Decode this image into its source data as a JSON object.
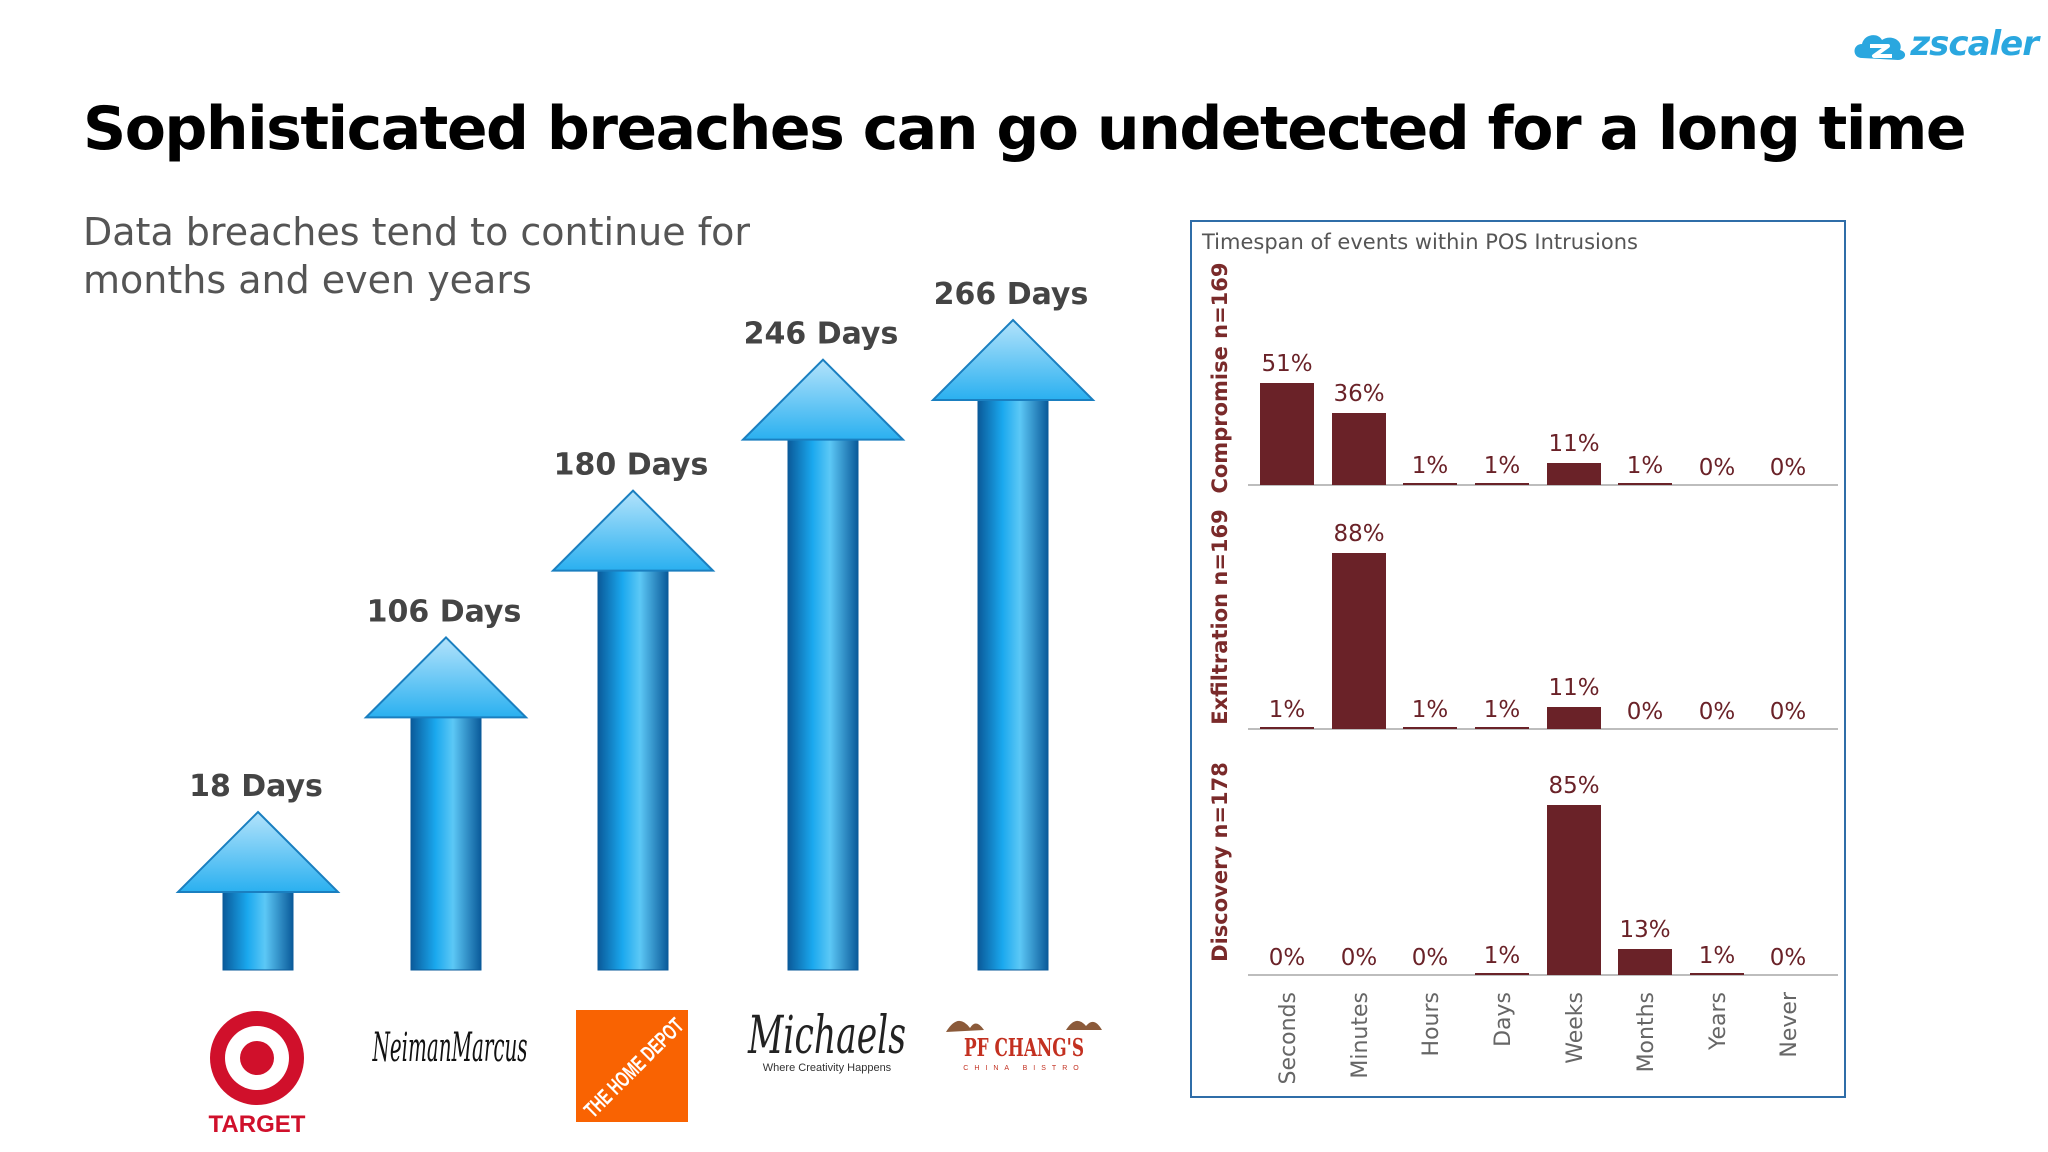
{
  "brand": "zscaler",
  "title": "Sophisticated breaches can go undetected for a long time",
  "subtitle": "Data breaches tend to continue for months and even years",
  "companies": [
    {
      "name": "Target",
      "logo_text": "TARGET",
      "days_label": "18 Days",
      "days": 18
    },
    {
      "name": "Neiman Marcus",
      "logo_text": "NeimanMarcus",
      "days_label": "106 Days",
      "days": 106
    },
    {
      "name": "The Home Depot",
      "logo_text": "THE HOME DEPOT",
      "days_label": "180 Days",
      "days": 180
    },
    {
      "name": "Michaels",
      "logo_text": "Michaels",
      "logo_tagline": "Where Creativity Happens",
      "days_label": "246 Days",
      "days": 246
    },
    {
      "name": "PF Chang's",
      "logo_text": "PF CHANG'S",
      "logo_tagline": "CHINA BISTRO",
      "days_label": "266 Days",
      "days": 266
    }
  ],
  "colors": {
    "arrow": "#1f9fe0",
    "bar": "#6a2228",
    "frame": "#2f6da8",
    "target_red": "#d0102b",
    "home_depot_orange": "#f96302"
  },
  "chart_data": {
    "type": "bar",
    "title": "Timespan of events within POS Intrusions",
    "categories": [
      "Seconds",
      "Minutes",
      "Hours",
      "Days",
      "Weeks",
      "Months",
      "Years",
      "Never"
    ],
    "series": [
      {
        "name": "Compromise n=169",
        "values": [
          51,
          36,
          1,
          1,
          11,
          1,
          0,
          0
        ],
        "labels": [
          "51%",
          "36%",
          "1%",
          "1%",
          "11%",
          "1%",
          "0%",
          "0%"
        ]
      },
      {
        "name": "Exfiltration n=169",
        "values": [
          1,
          88,
          1,
          1,
          11,
          0,
          0,
          0
        ],
        "labels": [
          "1%",
          "88%",
          "1%",
          "1%",
          "11%",
          "0%",
          "0%",
          "0%"
        ]
      },
      {
        "name": "Discovery n=178",
        "values": [
          0,
          0,
          0,
          1,
          85,
          13,
          1,
          0
        ],
        "labels": [
          "0%",
          "0%",
          "0%",
          "1%",
          "85%",
          "13%",
          "1%",
          "0%"
        ]
      }
    ],
    "ylim": [
      0,
      100
    ],
    "layout": "small multiples, stacked vertically"
  }
}
